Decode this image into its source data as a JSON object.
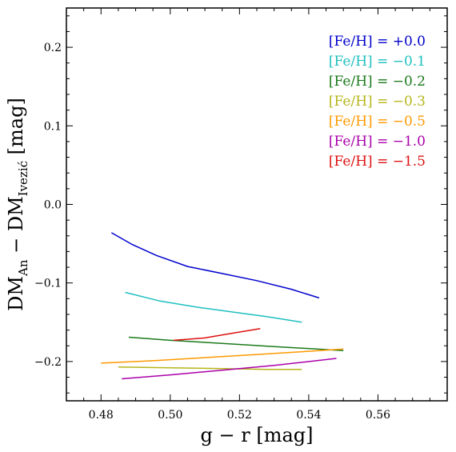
{
  "chart_data": {
    "type": "line",
    "xlabel": "g − r [mag]",
    "ylabel": "DM_An − DM_Ivezić [mag]",
    "ylabel_parts": {
      "pre": "DM",
      "sub1": "An",
      "mid": " − DM",
      "sub2": "Ivezić",
      "post": " [mag]"
    },
    "xlim": [
      0.47,
      0.58
    ],
    "ylim": [
      -0.25,
      0.25
    ],
    "x_ticks": [
      0.48,
      0.5,
      0.52,
      0.54,
      0.56
    ],
    "x_tick_labels": [
      "0.48",
      "0.50",
      "0.52",
      "0.54",
      "0.56"
    ],
    "y_ticks": [
      -0.2,
      -0.1,
      0.0,
      0.1,
      0.2
    ],
    "y_tick_labels": [
      "−0.2",
      "−0.1",
      "0.0",
      "0.1",
      "0.2"
    ],
    "grid": false,
    "legend_placement": "top-right",
    "series": [
      {
        "name": "[Fe/H] = +0.0",
        "color": "#0000cc",
        "points": [
          [
            0.483,
            -0.036
          ],
          [
            0.489,
            -0.051
          ],
          [
            0.496,
            -0.065
          ],
          [
            0.505,
            -0.079
          ],
          [
            0.515,
            -0.088
          ],
          [
            0.525,
            -0.097
          ],
          [
            0.535,
            -0.108
          ],
          [
            0.543,
            -0.119
          ]
        ]
      },
      {
        "name": "[Fe/H] = −0.1",
        "color": "#1fbfbf",
        "points": [
          [
            0.487,
            -0.112
          ],
          [
            0.497,
            -0.123
          ],
          [
            0.508,
            -0.131
          ],
          [
            0.518,
            -0.137
          ],
          [
            0.528,
            -0.143
          ],
          [
            0.538,
            -0.15
          ]
        ]
      },
      {
        "name": "[Fe/H] = −0.2",
        "color": "#1a7a1a",
        "points": [
          [
            0.488,
            -0.169
          ],
          [
            0.5,
            -0.173
          ],
          [
            0.515,
            -0.177
          ],
          [
            0.53,
            -0.181
          ],
          [
            0.55,
            -0.186
          ]
        ]
      },
      {
        "name": "[Fe/H] = −0.3",
        "color": "#b5b51a",
        "points": [
          [
            0.485,
            -0.207
          ],
          [
            0.5,
            -0.208
          ],
          [
            0.515,
            -0.209
          ],
          [
            0.528,
            -0.21
          ],
          [
            0.538,
            -0.21
          ]
        ]
      },
      {
        "name": "[Fe/H] = −0.5",
        "color": "#ff9900",
        "points": [
          [
            0.48,
            -0.202
          ],
          [
            0.495,
            -0.199
          ],
          [
            0.51,
            -0.195
          ],
          [
            0.525,
            -0.191
          ],
          [
            0.54,
            -0.187
          ],
          [
            0.55,
            -0.184
          ]
        ]
      },
      {
        "name": "[Fe/H] = −1.0",
        "color": "#aa00aa",
        "points": [
          [
            0.486,
            -0.222
          ],
          [
            0.5,
            -0.217
          ],
          [
            0.515,
            -0.211
          ],
          [
            0.53,
            -0.205
          ],
          [
            0.548,
            -0.196
          ]
        ]
      },
      {
        "name": "[Fe/H] = −1.5",
        "color": "#dd1111",
        "points": [
          [
            0.501,
            -0.173
          ],
          [
            0.51,
            -0.17
          ],
          [
            0.518,
            -0.164
          ],
          [
            0.526,
            -0.158
          ]
        ]
      }
    ]
  }
}
